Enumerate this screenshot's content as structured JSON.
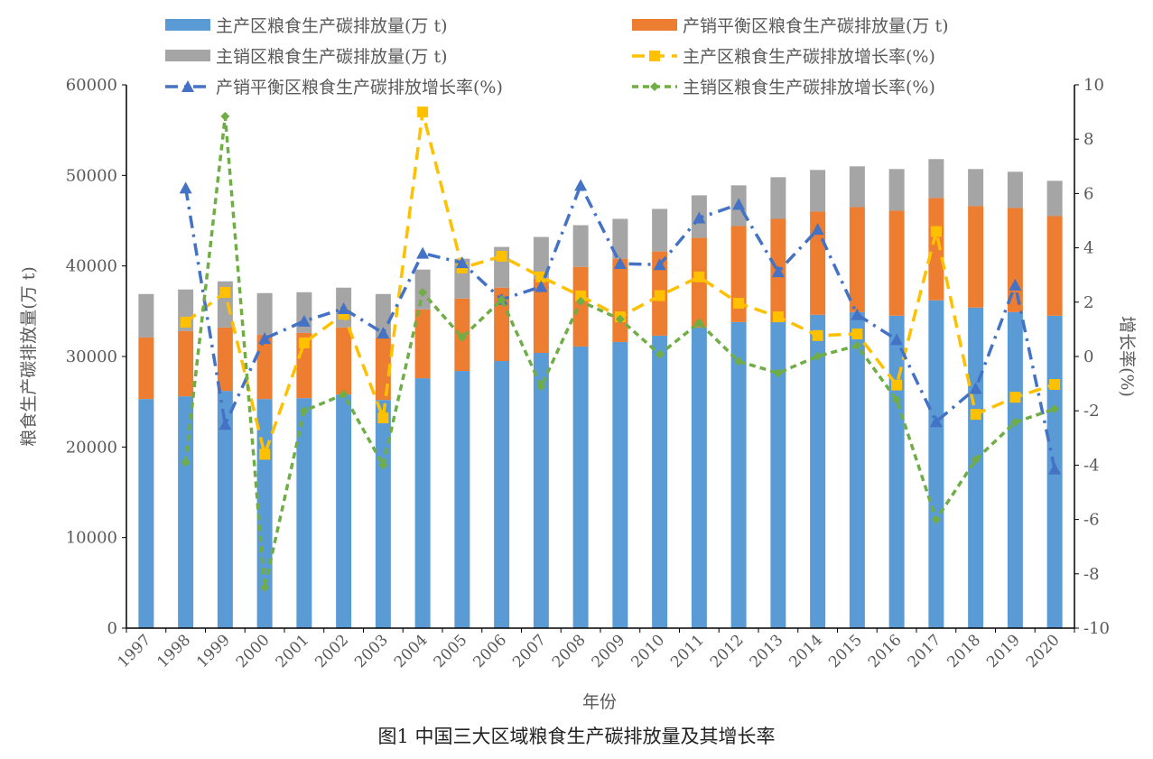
{
  "chart_data": {
    "type": "bar+line",
    "caption": "图1 中国三大区域粮食生产碳排放量及其增长率",
    "xlabel": "年份",
    "ylabel_left": "粮食生产碳排放量(万 t)",
    "ylabel_right": "增长率(%)",
    "ylim_left": [
      0,
      60000
    ],
    "ylim_right": [
      -10,
      10
    ],
    "yticks_left": [
      "0",
      "10000",
      "20000",
      "30000",
      "40000",
      "50000",
      "60000"
    ],
    "yticks_right": [
      "-10",
      "-8",
      "-6",
      "-4",
      "-2",
      "0",
      "2",
      "4",
      "6",
      "8",
      "10"
    ],
    "grid": false,
    "legend_position": "top",
    "categories": [
      "1997",
      "1998",
      "1999",
      "2000",
      "2001",
      "2002",
      "2003",
      "2004",
      "2005",
      "2006",
      "2007",
      "2008",
      "2009",
      "2010",
      "2011",
      "2012",
      "2013",
      "2014",
      "2015",
      "2016",
      "2017",
      "2018",
      "2019",
      "2020"
    ],
    "bar_series": [
      {
        "name": "主产区粮食生产碳排放量(万 t)",
        "color": "#5b9bd5",
        "values": [
          25300,
          25600,
          26200,
          25300,
          25400,
          25800,
          25200,
          27600,
          28400,
          29500,
          30400,
          31100,
          31600,
          32300,
          33200,
          33800,
          33800,
          34600,
          34900,
          34500,
          36200,
          35400,
          34900,
          34500
        ]
      },
      {
        "name": "产销平衡区粮食生产碳排放量(万 t)",
        "color": "#ed7d31",
        "values": [
          6800,
          7200,
          7000,
          7100,
          7200,
          7400,
          6900,
          7600,
          8000,
          8100,
          8200,
          8800,
          9200,
          9300,
          9900,
          10600,
          11400,
          11400,
          11600,
          11600,
          11300,
          11200,
          11500,
          11000
        ]
      },
      {
        "name": "主销区粮食生产碳排放量(万 t)",
        "color": "#a5a5a5",
        "values": [
          4800,
          4600,
          5100,
          4600,
          4500,
          4400,
          4800,
          4400,
          4400,
          4500,
          4600,
          4600,
          4400,
          4700,
          4700,
          4500,
          4600,
          4600,
          4500,
          4600,
          4300,
          4100,
          4000,
          3900
        ]
      }
    ],
    "line_series": [
      {
        "name": "主产区粮食生产碳排放增长率(%)",
        "color": "#ffc000",
        "marker": "square",
        "dash": "dash",
        "values": [
          null,
          1.26,
          2.36,
          -3.6,
          0.5,
          1.56,
          -2.26,
          9.0,
          3.26,
          3.69,
          2.93,
          2.23,
          1.46,
          2.24,
          2.93,
          1.96,
          1.46,
          0.77,
          0.83,
          -1.05,
          4.6,
          -2.13,
          -1.5,
          -1.03
        ]
      },
      {
        "name": "产销平衡区粮食生产碳排放增长率(%)",
        "color": "#4472c4",
        "marker": "triangle",
        "dash": "dashdot",
        "values": [
          null,
          6.2,
          -2.5,
          0.66,
          1.3,
          1.76,
          0.86,
          3.8,
          3.45,
          2.1,
          2.57,
          6.3,
          3.42,
          3.38,
          5.1,
          5.6,
          3.12,
          4.68,
          1.54,
          0.62,
          -2.4,
          -1.18,
          2.63,
          -4.14
        ]
      },
      {
        "name": "主销区粮食生产碳排放增长率(%)",
        "color": "#70ad47",
        "marker": "diamond",
        "dash": "shortdash",
        "values": [
          null,
          -3.9,
          8.84,
          -8.5,
          -2.0,
          -1.4,
          -4.0,
          2.36,
          0.7,
          2.09,
          -1.1,
          2.03,
          1.37,
          0.08,
          1.24,
          -0.18,
          -0.61,
          0.01,
          0.4,
          -1.6,
          -6.0,
          -3.8,
          -2.42,
          -1.93
        ]
      }
    ]
  }
}
